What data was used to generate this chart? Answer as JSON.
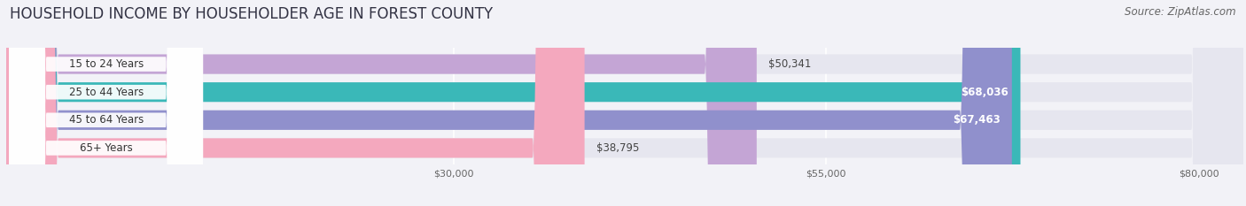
{
  "title": "HOUSEHOLD INCOME BY HOUSEHOLDER AGE IN FOREST COUNTY",
  "source": "Source: ZipAtlas.com",
  "categories": [
    "15 to 24 Years",
    "25 to 44 Years",
    "45 to 64 Years",
    "65+ Years"
  ],
  "values": [
    50341,
    68036,
    67463,
    38795
  ],
  "bar_colors": [
    "#c4a5d5",
    "#3ab8b8",
    "#9090cc",
    "#f4a8be"
  ],
  "bar_labels": [
    "$50,341",
    "$68,036",
    "$67,463",
    "$38,795"
  ],
  "label_colors": [
    "#333333",
    "#ffffff",
    "#ffffff",
    "#333333"
  ],
  "x_ticks": [
    30000,
    55000,
    80000
  ],
  "x_tick_labels": [
    "$30,000",
    "$55,000",
    "$80,000"
  ],
  "xmin": 0,
  "xmax": 83000,
  "background_color": "#f2f2f7",
  "bar_bg_color": "#e6e6ef",
  "title_fontsize": 12,
  "source_fontsize": 8.5,
  "label_fontsize": 8.5,
  "cat_fontsize": 8.5
}
